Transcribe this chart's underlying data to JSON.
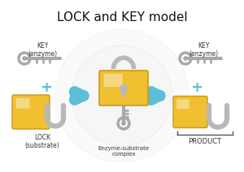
{
  "title": "LOCK and KEY model",
  "title_fontsize": 11,
  "background_color": "#ffffff",
  "labels": {
    "key_enzyme_left": "KEY\n(enzyme)",
    "lock_substrate": "LOCK\n(substrate)",
    "enzyme_substrate": "Enzyme-substrate\ncomplex",
    "key_enzyme_right": "KEY\n(enzyme)",
    "product": "PRODUCT"
  },
  "plus_color": "#4ab8d8",
  "arrow_color": "#5bbfd8",
  "lock_body_color": "#f0c030",
  "lock_body_edge": "#c8991a",
  "lock_shackle_color": "#b8b8b8",
  "key_color": "#a8a8a8",
  "circle_color": "#e8e8e8",
  "circle_edge": "#d0d0d0"
}
